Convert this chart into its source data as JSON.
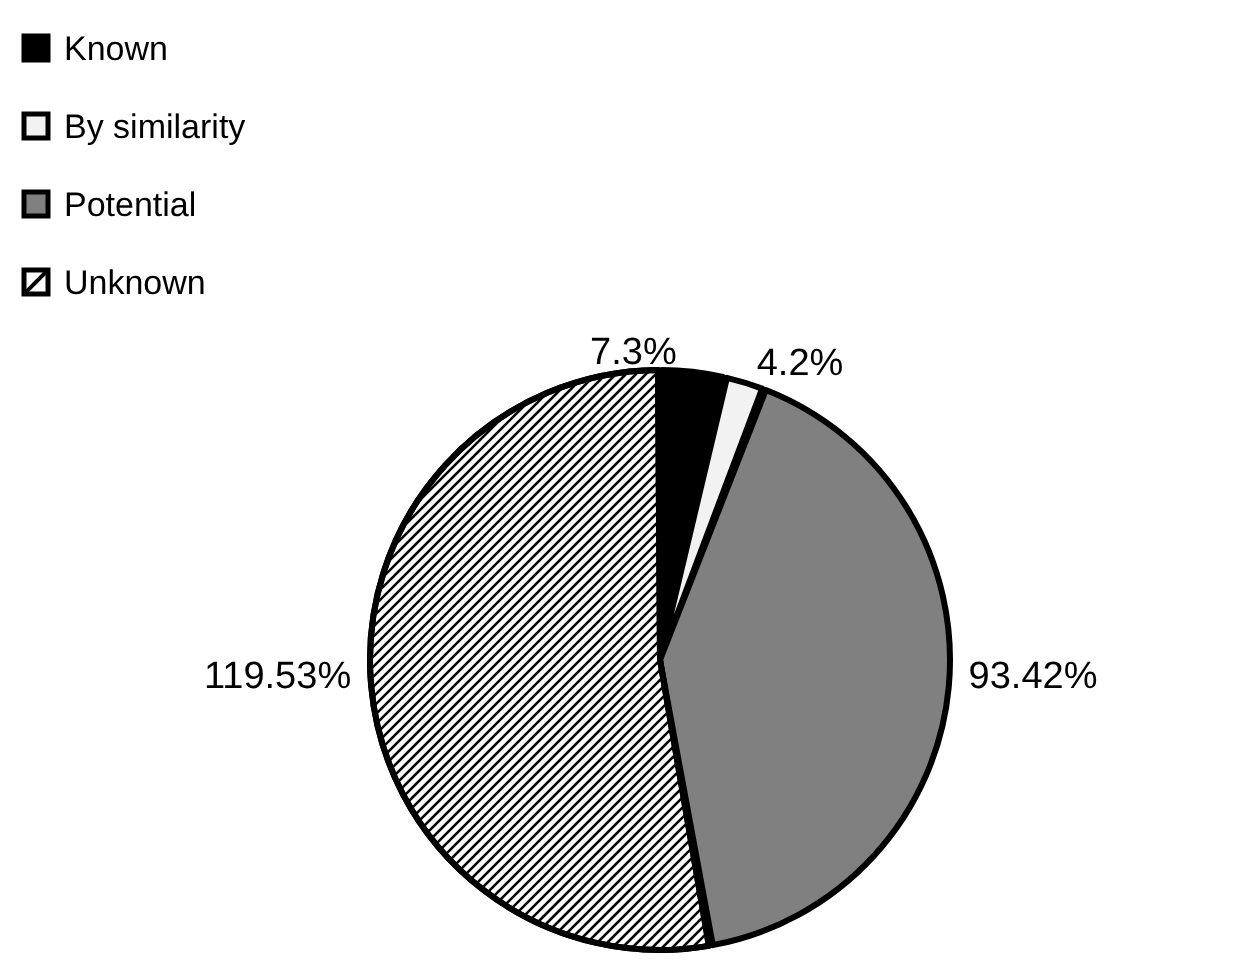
{
  "chart_data": {
    "type": "pie",
    "categories": [
      "Known",
      "By similarity",
      "Potential",
      "Unknown"
    ],
    "values": [
      7.3,
      4.2,
      93.42,
      119.53
    ],
    "value_labels": [
      "7.3%",
      "4.2%",
      "93.42%",
      "119.53%"
    ],
    "colors": [
      "#000000",
      "#f2f2f2",
      "#808080",
      "#ffffff"
    ],
    "legend": "top left"
  }
}
